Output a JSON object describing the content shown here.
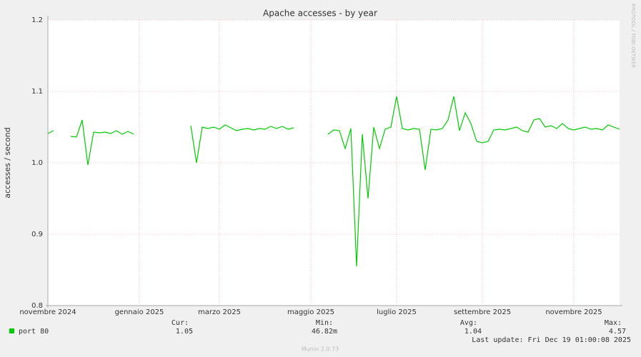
{
  "chart_data": {
    "type": "line",
    "title": "Apache accesses - by year",
    "y_label": "accesses / second",
    "watermark": "RRDTOOL / TOBI OETIKER",
    "categories": [
      "novembre 2024",
      null,
      null,
      null,
      null,
      null,
      null,
      null,
      null,
      null,
      null,
      null,
      null,
      null,
      null,
      null,
      "gennaio 2025",
      null,
      null,
      null,
      null,
      null,
      null,
      null,
      null,
      null,
      null,
      null,
      null,
      null,
      "marzo 2025",
      null,
      null,
      null,
      null,
      null,
      null,
      null,
      null,
      null,
      null,
      null,
      null,
      null,
      null,
      null,
      "maggio 2025",
      null,
      null,
      null,
      null,
      null,
      null,
      null,
      null,
      null,
      null,
      null,
      null,
      null,
      null,
      "luglio 2025",
      null,
      null,
      null,
      null,
      null,
      null,
      null,
      null,
      null,
      null,
      null,
      null,
      null,
      null,
      "settembre 2025",
      null,
      null,
      null,
      null,
      null,
      null,
      null,
      null,
      null,
      null,
      null,
      null,
      null,
      null,
      null,
      "novembre 2025",
      null,
      null,
      null,
      null,
      null,
      null,
      null,
      null
    ],
    "series": [
      {
        "name": "port 80",
        "color": "#00cc00",
        "values": [
          1.041,
          1.045,
          null,
          null,
          1.037,
          1.036,
          1.06,
          0.997,
          1.043,
          1.042,
          1.043,
          1.041,
          1.045,
          1.04,
          1.044,
          1.04,
          null,
          null,
          null,
          null,
          null,
          null,
          null,
          null,
          null,
          1.052,
          1.0,
          1.05,
          1.048,
          1.05,
          1.047,
          1.053,
          1.049,
          1.045,
          1.047,
          1.048,
          1.046,
          1.048,
          1.047,
          1.051,
          1.048,
          1.051,
          1.047,
          1.049,
          null,
          null,
          null,
          null,
          null,
          1.04,
          1.046,
          1.045,
          1.02,
          1.048,
          0.855,
          1.04,
          0.95,
          1.05,
          1.02,
          1.047,
          1.05,
          1.093,
          1.048,
          1.046,
          1.048,
          1.047,
          0.99,
          1.047,
          1.046,
          1.048,
          1.06,
          1.093,
          1.045,
          1.07,
          1.055,
          1.03,
          1.028,
          1.03,
          1.046,
          1.047,
          1.046,
          1.048,
          1.05,
          1.045,
          1.043,
          1.06,
          1.062,
          1.05,
          1.052,
          1.048,
          1.055,
          1.048,
          1.046,
          1.048,
          1.05,
          1.047,
          1.048,
          1.046,
          1.053,
          1.05,
          1.047
        ]
      }
    ],
    "ylim": [
      0.8,
      1.2
    ],
    "yticks": [
      0.8,
      0.9,
      {
        "value": 1.0,
        "label": "1.0"
      },
      1.1,
      1.2
    ],
    "grid": true,
    "stats": [
      {
        "label": "Cur:",
        "value": "1.05"
      },
      {
        "label": "Min:",
        "value": "46.82m"
      },
      {
        "label": "Avg:",
        "value": "1.04"
      },
      {
        "label": "Max:",
        "value": "4.57"
      }
    ],
    "last_update": "Last update: Fri Dec 19 01:00:08 2025",
    "footer": "Munin 2.0.73"
  }
}
